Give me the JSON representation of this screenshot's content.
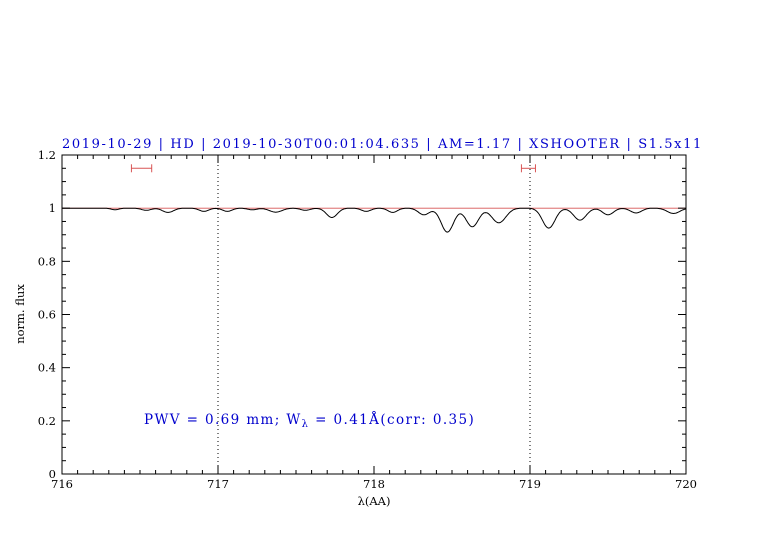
{
  "chart_data": {
    "type": "line",
    "title": "2019-10-29 | HD | 2019-10-30T00:01:04.635 | AM=1.17 | XSHOOTER | S1.5x11",
    "xlabel": "λ(AA)",
    "ylabel": "norm. flux",
    "xlim": [
      716,
      720
    ],
    "ylim": [
      0,
      1.2
    ],
    "xticks": {
      "major": [
        716,
        717,
        718,
        719,
        720
      ],
      "labels": [
        "716",
        "717",
        "718",
        "719",
        "720"
      ],
      "minor_step": 0.1
    },
    "yticks": {
      "major": [
        0,
        0.2,
        0.4,
        0.6,
        0.8,
        1,
        1.2
      ],
      "labels": [
        "0",
        "0.2",
        "0.4",
        "0.6",
        "0.8",
        "1",
        "1.2"
      ],
      "minor_step": 0.05
    },
    "grid": "off",
    "legend": "none",
    "baseline": 1.0,
    "sample_step": 0.005,
    "series": [
      {
        "name": "observed-spectrum",
        "color": "#000000",
        "style": "solid"
      },
      {
        "name": "continuum-fit",
        "color": "#d85555",
        "style": "solid",
        "y": 1.0
      }
    ],
    "absorption_lines": [
      {
        "center": 716.34,
        "depth": 0.006,
        "sigma": 0.025
      },
      {
        "center": 716.54,
        "depth": 0.008,
        "sigma": 0.03
      },
      {
        "center": 716.68,
        "depth": 0.016,
        "sigma": 0.035
      },
      {
        "center": 716.91,
        "depth": 0.012,
        "sigma": 0.03
      },
      {
        "center": 717.06,
        "depth": 0.012,
        "sigma": 0.03
      },
      {
        "center": 717.22,
        "depth": 0.006,
        "sigma": 0.03
      },
      {
        "center": 717.37,
        "depth": 0.015,
        "sigma": 0.04
      },
      {
        "center": 717.56,
        "depth": 0.008,
        "sigma": 0.03
      },
      {
        "center": 717.73,
        "depth": 0.035,
        "sigma": 0.035
      },
      {
        "center": 717.95,
        "depth": 0.012,
        "sigma": 0.03
      },
      {
        "center": 718.12,
        "depth": 0.016,
        "sigma": 0.03
      },
      {
        "center": 718.32,
        "depth": 0.025,
        "sigma": 0.035
      },
      {
        "center": 718.47,
        "depth": 0.09,
        "sigma": 0.04
      },
      {
        "center": 718.63,
        "depth": 0.07,
        "sigma": 0.04
      },
      {
        "center": 718.8,
        "depth": 0.055,
        "sigma": 0.045
      },
      {
        "center": 719.12,
        "depth": 0.075,
        "sigma": 0.04
      },
      {
        "center": 719.32,
        "depth": 0.045,
        "sigma": 0.04
      },
      {
        "center": 719.5,
        "depth": 0.025,
        "sigma": 0.035
      },
      {
        "center": 719.68,
        "depth": 0.018,
        "sigma": 0.035
      },
      {
        "center": 719.92,
        "depth": 0.02,
        "sigma": 0.04
      }
    ],
    "dotted_vlines": [
      717,
      719
    ],
    "range_markers": [
      {
        "x": 716.51,
        "halfwidth": 0.065,
        "y": 1.15
      },
      {
        "x": 718.99,
        "halfwidth": 0.045,
        "y": 1.15
      }
    ],
    "marker_color": "#d85555",
    "annotation": {
      "prefix": "PWV = 0.69 mm; W",
      "sub": "λ",
      "suffix": " = 0.41Å(corr: 0.35)",
      "x": 716.53,
      "y": 0.2,
      "color": "#0000cd"
    },
    "colors": {
      "title": "#0000cd",
      "frame": "#000000",
      "spectrum": "#000000",
      "continuum": "#d85555"
    }
  }
}
